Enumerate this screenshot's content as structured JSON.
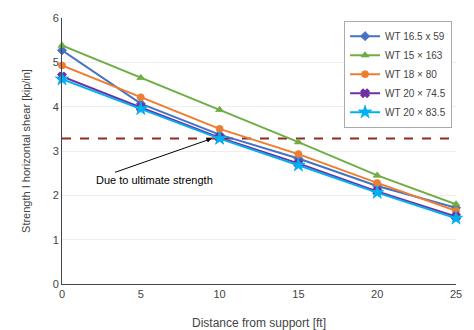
{
  "chart_data": {
    "type": "line",
    "x": [
      0,
      5,
      10,
      15,
      20,
      25
    ],
    "series": [
      {
        "name": "WT 16.5 x 59",
        "color": "#4472c4",
        "marker": "diamond",
        "values": [
          5.27,
          4.07,
          3.37,
          2.83,
          2.21,
          1.72
        ]
      },
      {
        "name": "WT 15 × 163",
        "color": "#70ad47",
        "marker": "triangle-up",
        "values": [
          5.38,
          4.65,
          3.93,
          3.2,
          2.45,
          1.8
        ]
      },
      {
        "name": "WT 18 × 80",
        "color": "#ed7d31",
        "marker": "circle",
        "values": [
          4.93,
          4.21,
          3.5,
          2.93,
          2.28,
          1.65
        ]
      },
      {
        "name": "WT 20 × 74.5",
        "color": "#7030a0",
        "marker": "x",
        "values": [
          4.68,
          3.98,
          3.3,
          2.72,
          2.09,
          1.52
        ]
      },
      {
        "name": "WT 20 × 83.5",
        "color": "#00b0f0",
        "marker": "star",
        "values": [
          4.62,
          3.95,
          3.28,
          2.68,
          2.06,
          1.48
        ]
      }
    ],
    "hline": {
      "y": 3.28,
      "color": "#922b21",
      "line_style": "dashed"
    },
    "annotations": [
      {
        "text": "Due to ultimate strength",
        "x": 9.5,
        "y": 3.28,
        "text_x": 2.0,
        "text_y": 2.35
      }
    ],
    "xlabel": "Distance from support [ft]",
    "ylabel": "Strength I horizontal shear [kip/in]",
    "xlim": [
      0,
      25
    ],
    "ylim": [
      0,
      6
    ],
    "xticks": [
      0,
      5,
      10,
      15,
      20,
      25
    ],
    "yticks": [
      0,
      1,
      2,
      3,
      4,
      5,
      6
    ],
    "grid": "y",
    "legend": "upper right"
  }
}
